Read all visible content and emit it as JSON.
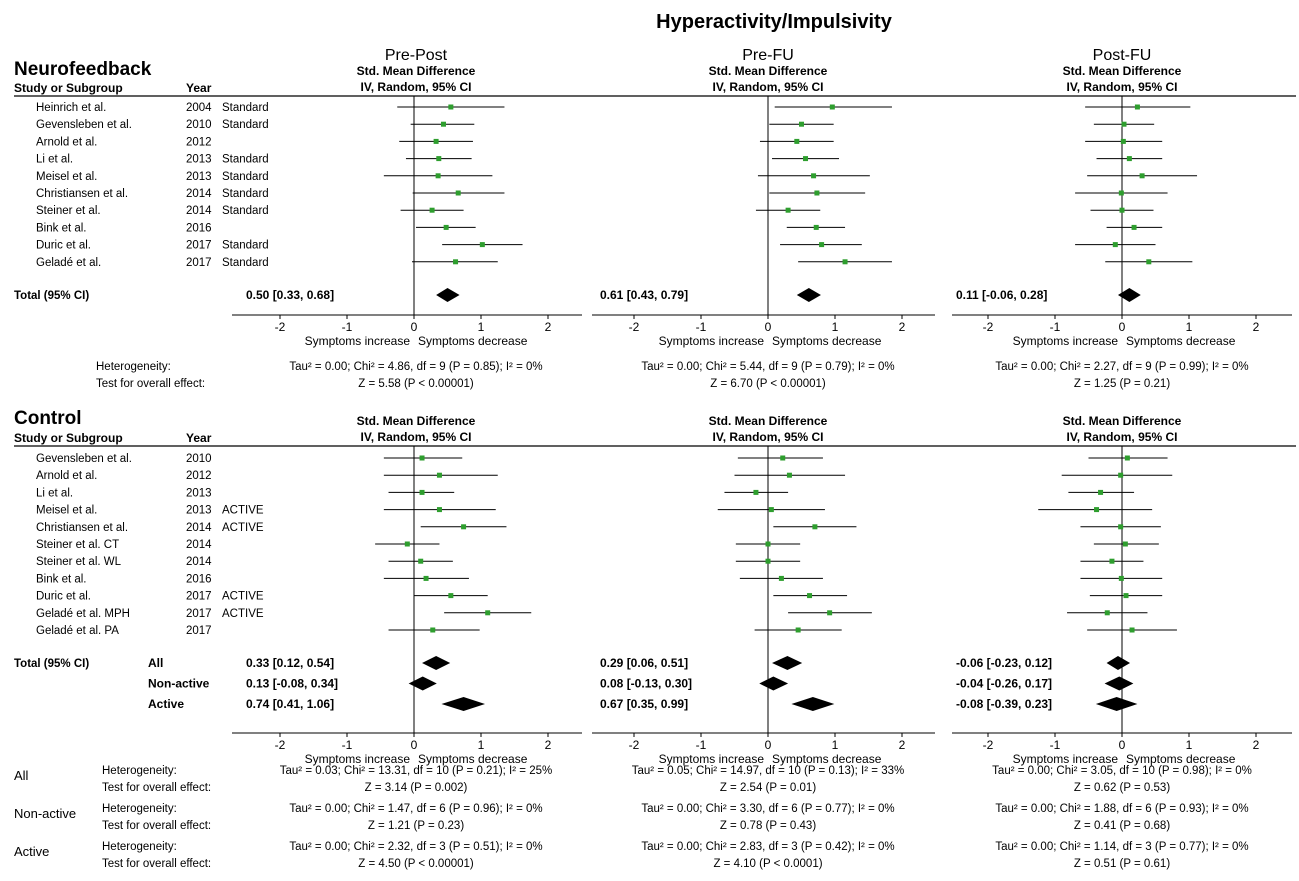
{
  "title": "Hyperactivity/Impulsivity",
  "columns": [
    {
      "label": "Pre-Post",
      "show_label": true
    },
    {
      "label": "Pre-FU",
      "show_label": true
    },
    {
      "label": "Post-FU",
      "show_label": true
    }
  ],
  "effect_header": [
    "Std. Mean Difference",
    "IV, Random, 95% CI"
  ],
  "study_header": "Study or Subgroup",
  "year_header": "Year",
  "x_ticks": [
    -2,
    -1,
    0,
    1,
    2
  ],
  "direction_labels": [
    "Symptoms increase",
    "Symptoms decrease"
  ],
  "total_label": "Total (95% CI)",
  "colors": {
    "marker": "#2e9e2e",
    "line": "#000000",
    "diamond": "#000000"
  },
  "chart_data": [
    {
      "type": "forest",
      "section": "Neurofeedback",
      "studies": [
        {
          "name": "Heinrich et al.",
          "year": "2004",
          "tag": "Standard",
          "est": [
            0.55,
            0.96,
            0.23
          ],
          "lo": [
            -0.25,
            0.1,
            -0.55
          ],
          "hi": [
            1.35,
            1.85,
            1.02
          ]
        },
        {
          "name": "Gevensleben et al.",
          "year": "2010",
          "tag": "Standard",
          "est": [
            0.44,
            0.5,
            0.03
          ],
          "lo": [
            -0.05,
            0.02,
            -0.42
          ],
          "hi": [
            0.9,
            0.98,
            0.48
          ]
        },
        {
          "name": "Arnold et al.",
          "year": "2012",
          "tag": "",
          "est": [
            0.33,
            0.43,
            0.02
          ],
          "lo": [
            -0.22,
            -0.12,
            -0.55
          ],
          "hi": [
            0.88,
            0.98,
            0.6
          ]
        },
        {
          "name": "Li et al.",
          "year": "2013",
          "tag": "Standard",
          "est": [
            0.37,
            0.56,
            0.11
          ],
          "lo": [
            -0.12,
            0.06,
            -0.38
          ],
          "hi": [
            0.86,
            1.06,
            0.6
          ]
        },
        {
          "name": "Meisel et al.",
          "year": "2013",
          "tag": "Standard",
          "est": [
            0.36,
            0.68,
            0.3
          ],
          "lo": [
            -0.45,
            -0.15,
            -0.52
          ],
          "hi": [
            1.17,
            1.52,
            1.12
          ]
        },
        {
          "name": "Christiansen et al.",
          "year": "2014",
          "tag": "Standard",
          "est": [
            0.66,
            0.73,
            -0.01
          ],
          "lo": [
            -0.02,
            0.02,
            -0.7
          ],
          "hi": [
            1.35,
            1.45,
            0.68
          ]
        },
        {
          "name": "Steiner et al.",
          "year": "2014",
          "tag": "Standard",
          "est": [
            0.27,
            0.3,
            0.0
          ],
          "lo": [
            -0.2,
            -0.18,
            -0.47
          ],
          "hi": [
            0.74,
            0.78,
            0.47
          ]
        },
        {
          "name": "Bink et al.",
          "year": "2016",
          "tag": "",
          "est": [
            0.48,
            0.72,
            0.18
          ],
          "lo": [
            0.03,
            0.28,
            -0.23
          ],
          "hi": [
            0.92,
            1.15,
            0.6
          ]
        },
        {
          "name": "Duric et al.",
          "year": "2017",
          "tag": "Standard",
          "est": [
            1.02,
            0.8,
            -0.1
          ],
          "lo": [
            0.42,
            0.18,
            -0.7
          ],
          "hi": [
            1.62,
            1.4,
            0.5
          ]
        },
        {
          "name": "Geladé et al.",
          "year": "2017",
          "tag": "Standard",
          "est": [
            0.62,
            1.15,
            0.4
          ],
          "lo": [
            -0.03,
            0.45,
            -0.25
          ],
          "hi": [
            1.25,
            1.85,
            1.05
          ]
        }
      ],
      "totals": [
        {
          "label": "",
          "est": [
            0.5,
            0.61,
            0.11
          ],
          "lo": [
            0.33,
            0.43,
            -0.06
          ],
          "hi": [
            0.68,
            0.79,
            0.28
          ],
          "text": [
            "0.50 [0.33, 0.68]",
            "0.61 [0.43, 0.79]",
            "0.11 [-0.06, 0.28]"
          ]
        }
      ],
      "stats": [
        {
          "group": "",
          "heterogeneity_label": "Heterogeneity:",
          "effect_label": "Test for overall effect:",
          "heterogeneity": [
            "Tau² = 0.00; Chi² = 4.86, df = 9 (P = 0.85); I² = 0%",
            "Tau² = 0.00; Chi² = 5.44, df = 9 (P = 0.79); I² = 0%",
            "Tau² = 0.00; Chi² = 2.27, df = 9 (P = 0.99); I² = 0%"
          ],
          "effect": [
            "Z = 5.58 (P < 0.00001)",
            "Z = 6.70 (P < 0.00001)",
            "Z = 1.25 (P = 0.21)"
          ]
        }
      ]
    },
    {
      "type": "forest",
      "section": "Control",
      "studies": [
        {
          "name": "Gevensleben et al.",
          "year": "2010",
          "tag": "",
          "est": [
            0.12,
            0.22,
            0.08
          ],
          "lo": [
            -0.45,
            -0.45,
            -0.5
          ],
          "hi": [
            0.72,
            0.82,
            0.68
          ]
        },
        {
          "name": "Arnold et al.",
          "year": "2012",
          "tag": "",
          "est": [
            0.38,
            0.32,
            -0.02
          ],
          "lo": [
            -0.45,
            -0.5,
            -0.9
          ],
          "hi": [
            1.25,
            1.15,
            0.75
          ]
        },
        {
          "name": "Li et al.",
          "year": "2013",
          "tag": "",
          "est": [
            0.12,
            -0.18,
            -0.32
          ],
          "lo": [
            -0.38,
            -0.65,
            -0.8
          ],
          "hi": [
            0.6,
            0.3,
            0.18
          ]
        },
        {
          "name": "Meisel et al.",
          "year": "2013",
          "tag": "ACTIVE",
          "est": [
            0.38,
            0.05,
            -0.38
          ],
          "lo": [
            -0.45,
            -0.75,
            -1.25
          ],
          "hi": [
            1.22,
            0.85,
            0.45
          ]
        },
        {
          "name": "Christiansen et al.",
          "year": "2014",
          "tag": "ACTIVE",
          "est": [
            0.74,
            0.7,
            -0.02
          ],
          "lo": [
            0.1,
            0.08,
            -0.62
          ],
          "hi": [
            1.38,
            1.32,
            0.58
          ]
        },
        {
          "name": "Steiner et al. CT",
          "year": "2014",
          "tag": "",
          "est": [
            -0.1,
            0.0,
            0.05
          ],
          "lo": [
            -0.58,
            -0.48,
            -0.42
          ],
          "hi": [
            0.38,
            0.48,
            0.55
          ]
        },
        {
          "name": "Steiner et al. WL",
          "year": "2014",
          "tag": "",
          "est": [
            0.1,
            0.0,
            -0.15
          ],
          "lo": [
            -0.38,
            -0.48,
            -0.62
          ],
          "hi": [
            0.58,
            0.48,
            0.32
          ]
        },
        {
          "name": "Bink et al.",
          "year": "2016",
          "tag": "",
          "est": [
            0.18,
            0.2,
            -0.01
          ],
          "lo": [
            -0.45,
            -0.42,
            -0.62
          ],
          "hi": [
            0.82,
            0.82,
            0.6
          ]
        },
        {
          "name": "Duric et al.",
          "year": "2017",
          "tag": "ACTIVE",
          "est": [
            0.55,
            0.62,
            0.06
          ],
          "lo": [
            0.0,
            0.08,
            -0.48
          ],
          "hi": [
            1.1,
            1.18,
            0.6
          ]
        },
        {
          "name": "Geladé et al. MPH",
          "year": "2017",
          "tag": "ACTIVE",
          "est": [
            1.1,
            0.92,
            -0.22
          ],
          "lo": [
            0.45,
            0.3,
            -0.82
          ],
          "hi": [
            1.75,
            1.55,
            0.38
          ]
        },
        {
          "name": "Geladé et al. PA",
          "year": "2017",
          "tag": "",
          "est": [
            0.28,
            0.45,
            0.15
          ],
          "lo": [
            -0.38,
            -0.2,
            -0.52
          ],
          "hi": [
            0.98,
            1.1,
            0.82
          ]
        }
      ],
      "totals": [
        {
          "label": "All",
          "est": [
            0.33,
            0.29,
            -0.06
          ],
          "lo": [
            0.12,
            0.06,
            -0.23
          ],
          "hi": [
            0.54,
            0.51,
            0.12
          ],
          "text": [
            "0.33 [0.12, 0.54]",
            "0.29 [0.06, 0.51]",
            "-0.06 [-0.23, 0.12]"
          ]
        },
        {
          "label": "Non-active",
          "est": [
            0.13,
            0.08,
            -0.04
          ],
          "lo": [
            -0.08,
            -0.13,
            -0.26
          ],
          "hi": [
            0.34,
            0.3,
            0.17
          ],
          "text": [
            "0.13 [-0.08, 0.34]",
            "0.08 [-0.13, 0.30]",
            "-0.04 [-0.26, 0.17]"
          ]
        },
        {
          "label": "Active",
          "est": [
            0.74,
            0.67,
            -0.08
          ],
          "lo": [
            0.41,
            0.35,
            -0.39
          ],
          "hi": [
            1.06,
            0.99,
            0.23
          ],
          "text": [
            "0.74 [0.41, 1.06]",
            "0.67 [0.35, 0.99]",
            "-0.08 [-0.39, 0.23]"
          ]
        }
      ],
      "stats": [
        {
          "group": "All",
          "heterogeneity_label": "Heterogeneity:",
          "effect_label": "Test for overall effect:",
          "heterogeneity": [
            "Tau² = 0.03; Chi² = 13.31, df = 10 (P = 0.21); I² = 25%",
            "Tau² = 0.05; Chi² = 14.97, df = 10 (P = 0.13); I² = 33%",
            "Tau² = 0.00; Chi² = 3.05, df = 10 (P = 0.98); I² = 0%"
          ],
          "effect": [
            "Z = 3.14 (P = 0.002)",
            "Z = 2.54 (P = 0.01)",
            "Z = 0.62 (P = 0.53)"
          ]
        },
        {
          "group": "Non-active",
          "heterogeneity_label": "Heterogeneity:",
          "effect_label": "Test for overall effect:",
          "heterogeneity": [
            "Tau² = 0.00; Chi² = 1.47, df = 6 (P = 0.96); I² = 0%",
            "Tau² = 0.00; Chi² = 3.30, df = 6 (P = 0.77); I² = 0%",
            "Tau² = 0.00; Chi² = 1.88, df = 6 (P = 0.93); I² = 0%"
          ],
          "effect": [
            "Z = 1.21 (P = 0.23)",
            "Z = 0.78 (P = 0.43)",
            "Z = 0.41 (P = 0.68)"
          ]
        },
        {
          "group": "Active",
          "heterogeneity_label": "Heterogeneity:",
          "effect_label": "Test for overall effect:",
          "heterogeneity": [
            "Tau² = 0.00; Chi² = 2.32, df = 3 (P = 0.51); I² = 0%",
            "Tau² = 0.00; Chi² = 2.83, df = 3 (P = 0.42); I² = 0%",
            "Tau² = 0.00; Chi² = 1.14, df = 3 (P = 0.77); I² = 0%"
          ],
          "effect": [
            "Z = 4.50 (P < 0.00001)",
            "Z = 4.10 (P < 0.0001)",
            "Z = 0.51 (P = 0.61)"
          ]
        }
      ]
    }
  ]
}
